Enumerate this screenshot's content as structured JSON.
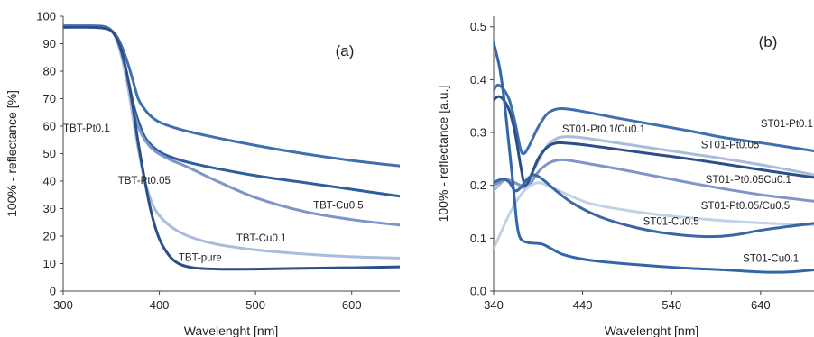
{
  "chart_data": [
    {
      "type": "line",
      "panel_label": "(a)",
      "xlabel": "Wavelenght [nm]",
      "ylabel": "100% - reflectance [%]",
      "xlim": [
        300,
        650
      ],
      "ylim": [
        0,
        100
      ],
      "xticks": [
        300,
        400,
        500,
        600
      ],
      "yticks": [
        0,
        10,
        20,
        30,
        40,
        50,
        60,
        70,
        80,
        90,
        100
      ],
      "grid": false,
      "legend": "none",
      "series": [
        {
          "name": "TBT-Pt0.1",
          "color": "#3f6fae",
          "label_at": [
            300,
            58
          ],
          "points": [
            [
              300,
              96.5
            ],
            [
              330,
              96.5
            ],
            [
              345,
              96
            ],
            [
              355,
              93
            ],
            [
              362,
              88
            ],
            [
              368,
              82
            ],
            [
              373,
              76
            ],
            [
              378,
              70
            ],
            [
              383,
              67
            ],
            [
              390,
              64
            ],
            [
              400,
              61.5
            ],
            [
              420,
              59
            ],
            [
              450,
              56.5
            ],
            [
              500,
              53
            ],
            [
              550,
              50
            ],
            [
              600,
              47.5
            ],
            [
              650,
              45.5
            ]
          ]
        },
        {
          "name": "TBT-Pt0.05",
          "color": "#2f5e9c",
          "label_at": [
            357,
            39
          ],
          "points": [
            [
              300,
              96
            ],
            [
              330,
              96
            ],
            [
              345,
              95.5
            ],
            [
              352,
              94
            ],
            [
              358,
              90
            ],
            [
              363,
              84
            ],
            [
              368,
              76
            ],
            [
              373,
              68
            ],
            [
              378,
              62
            ],
            [
              385,
              56
            ],
            [
              395,
              52
            ],
            [
              410,
              49
            ],
            [
              440,
              46
            ],
            [
              500,
              42
            ],
            [
              550,
              39.5
            ],
            [
              600,
              37
            ],
            [
              650,
              34.5
            ]
          ]
        },
        {
          "name": "TBT-Cu0.5",
          "color": "#7d95c7",
          "label_at": [
            560,
            30
          ],
          "points": [
            [
              300,
              96
            ],
            [
              330,
              96
            ],
            [
              345,
              95.5
            ],
            [
              352,
              94
            ],
            [
              358,
              89
            ],
            [
              363,
              82
            ],
            [
              368,
              74
            ],
            [
              373,
              66
            ],
            [
              378,
              60
            ],
            [
              385,
              55
            ],
            [
              395,
              51
            ],
            [
              410,
              48
            ],
            [
              430,
              45
            ],
            [
              460,
              40
            ],
            [
              500,
              34
            ],
            [
              550,
              29
            ],
            [
              600,
              26
            ],
            [
              650,
              24
            ]
          ]
        },
        {
          "name": "TBT-Cu0.1",
          "color": "#a9bcdb",
          "label_at": [
            480,
            18
          ],
          "points": [
            [
              300,
              96
            ],
            [
              330,
              96
            ],
            [
              345,
              95.5
            ],
            [
              352,
              94
            ],
            [
              358,
              89
            ],
            [
              363,
              82
            ],
            [
              368,
              73
            ],
            [
              373,
              62
            ],
            [
              378,
              52
            ],
            [
              385,
              40
            ],
            [
              395,
              30
            ],
            [
              410,
              24
            ],
            [
              430,
              20
            ],
            [
              460,
              17
            ],
            [
              500,
              15
            ],
            [
              550,
              13.5
            ],
            [
              600,
              12.5
            ],
            [
              650,
              12
            ]
          ]
        },
        {
          "name": "TBT-pure",
          "color": "#2c4f8a",
          "label_at": [
            420,
            11
          ],
          "points": [
            [
              300,
              96
            ],
            [
              330,
              96
            ],
            [
              345,
              95.5
            ],
            [
              352,
              94
            ],
            [
              358,
              90
            ],
            [
              363,
              84
            ],
            [
              368,
              76
            ],
            [
              373,
              66
            ],
            [
              378,
              54
            ],
            [
              385,
              40
            ],
            [
              392,
              28
            ],
            [
              400,
              19
            ],
            [
              410,
              13
            ],
            [
              420,
              10
            ],
            [
              435,
              8.5
            ],
            [
              460,
              8
            ],
            [
              500,
              8
            ],
            [
              550,
              8.3
            ],
            [
              600,
              8.5
            ],
            [
              650,
              8.8
            ]
          ]
        }
      ]
    },
    {
      "type": "line",
      "panel_label": "(b)",
      "xlabel": "Wavelenght [nm]",
      "ylabel": "100% - reflectance [a.u.]",
      "xlim": [
        340,
        700
      ],
      "ylim": [
        0,
        0.52
      ],
      "xticks": [
        340,
        440,
        540,
        640
      ],
      "yticks": [
        0,
        0.1,
        0.2,
        0.3,
        0.4,
        0.5
      ],
      "grid": false,
      "legend": "none",
      "series": [
        {
          "name": "ST01-Pt0.1",
          "color": "#3f6fae",
          "label_at": [
            640,
            0.31
          ],
          "points": [
            [
              340,
              0.38
            ],
            [
              345,
              0.39
            ],
            [
              352,
              0.38
            ],
            [
              358,
              0.36
            ],
            [
              364,
              0.32
            ],
            [
              370,
              0.27
            ],
            [
              374,
              0.26
            ],
            [
              380,
              0.275
            ],
            [
              390,
              0.31
            ],
            [
              400,
              0.335
            ],
            [
              410,
              0.344
            ],
            [
              420,
              0.345
            ],
            [
              440,
              0.34
            ],
            [
              480,
              0.327
            ],
            [
              520,
              0.315
            ],
            [
              560,
              0.303
            ],
            [
              600,
              0.29
            ],
            [
              650,
              0.278
            ],
            [
              700,
              0.265
            ]
          ]
        },
        {
          "name": "ST01-Pt0.1/Cu0.1",
          "color": "#a9bcdb",
          "label_at": [
            417,
            0.3
          ],
          "points": [
            [
              340,
              0.19
            ],
            [
              346,
              0.2
            ],
            [
              352,
              0.21
            ],
            [
              358,
              0.208
            ],
            [
              364,
              0.205
            ],
            [
              372,
              0.2
            ],
            [
              380,
              0.215
            ],
            [
              390,
              0.245
            ],
            [
              400,
              0.275
            ],
            [
              410,
              0.288
            ],
            [
              420,
              0.292
            ],
            [
              440,
              0.29
            ],
            [
              480,
              0.28
            ],
            [
              520,
              0.27
            ],
            [
              560,
              0.26
            ],
            [
              600,
              0.25
            ],
            [
              650,
              0.236
            ],
            [
              700,
              0.22
            ]
          ]
        },
        {
          "name": "ST01-Pt0.05",
          "color": "#2c4f8a",
          "label_at": [
            573,
            0.27
          ],
          "points": [
            [
              340,
              0.362
            ],
            [
              346,
              0.368
            ],
            [
              352,
              0.36
            ],
            [
              358,
              0.34
            ],
            [
              364,
              0.3
            ],
            [
              370,
              0.24
            ],
            [
              375,
              0.2
            ],
            [
              380,
              0.21
            ],
            [
              390,
              0.25
            ],
            [
              400,
              0.272
            ],
            [
              410,
              0.28
            ],
            [
              420,
              0.28
            ],
            [
              440,
              0.277
            ],
            [
              480,
              0.268
            ],
            [
              520,
              0.259
            ],
            [
              560,
              0.25
            ],
            [
              600,
              0.24
            ],
            [
              650,
              0.227
            ],
            [
              700,
              0.215
            ]
          ]
        },
        {
          "name": "ST01-Pt0.05Cu0.1",
          "color": "#7d95c7",
          "label_at": [
            578,
            0.205
          ],
          "points": [
            [
              340,
              0.2
            ],
            [
              346,
              0.205
            ],
            [
              352,
              0.21
            ],
            [
              358,
              0.21
            ],
            [
              364,
              0.205
            ],
            [
              370,
              0.2
            ],
            [
              376,
              0.195
            ],
            [
              382,
              0.205
            ],
            [
              390,
              0.225
            ],
            [
              400,
              0.24
            ],
            [
              410,
              0.247
            ],
            [
              420,
              0.248
            ],
            [
              440,
              0.243
            ],
            [
              480,
              0.231
            ],
            [
              520,
              0.218
            ],
            [
              560,
              0.205
            ],
            [
              600,
              0.193
            ],
            [
              650,
              0.18
            ],
            [
              700,
              0.17
            ]
          ]
        },
        {
          "name": "ST01-Pt0.05/Cu0.5",
          "color": "#c3d1e8",
          "label_at": [
            573,
            0.155
          ],
          "points": [
            [
              340,
              0.08
            ],
            [
              348,
              0.11
            ],
            [
              356,
              0.14
            ],
            [
              364,
              0.165
            ],
            [
              372,
              0.185
            ],
            [
              380,
              0.198
            ],
            [
              390,
              0.205
            ],
            [
              400,
              0.2
            ],
            [
              420,
              0.185
            ],
            [
              450,
              0.165
            ],
            [
              500,
              0.15
            ],
            [
              550,
              0.14
            ],
            [
              600,
              0.133
            ],
            [
              650,
              0.128
            ],
            [
              700,
              0.125
            ]
          ]
        },
        {
          "name": "ST01-Cu0.5",
          "color": "#3a66a5",
          "label_at": [
            508,
            0.125
          ],
          "points": [
            [
              340,
              0.205
            ],
            [
              346,
              0.21
            ],
            [
              352,
              0.212
            ],
            [
              358,
              0.205
            ],
            [
              364,
              0.19
            ],
            [
              370,
              0.195
            ],
            [
              378,
              0.212
            ],
            [
              386,
              0.22
            ],
            [
              396,
              0.21
            ],
            [
              410,
              0.19
            ],
            [
              430,
              0.165
            ],
            [
              460,
              0.14
            ],
            [
              500,
              0.12
            ],
            [
              540,
              0.108
            ],
            [
              580,
              0.103
            ],
            [
              610,
              0.106
            ],
            [
              640,
              0.115
            ],
            [
              670,
              0.122
            ],
            [
              700,
              0.128
            ]
          ]
        },
        {
          "name": "ST01-Cu0.1",
          "color": "#3366a8",
          "label_at": [
            620,
            0.055
          ],
          "points": [
            [
              340,
              0.47
            ],
            [
              343,
              0.45
            ],
            [
              347,
              0.42
            ],
            [
              352,
              0.36
            ],
            [
              357,
              0.28
            ],
            [
              362,
              0.2
            ],
            [
              366,
              0.13
            ],
            [
              370,
              0.1
            ],
            [
              378,
              0.092
            ],
            [
              390,
              0.09
            ],
            [
              396,
              0.088
            ],
            [
              405,
              0.08
            ],
            [
              420,
              0.068
            ],
            [
              450,
              0.058
            ],
            [
              500,
              0.05
            ],
            [
              550,
              0.044
            ],
            [
              600,
              0.04
            ],
            [
              640,
              0.036
            ],
            [
              670,
              0.036
            ],
            [
              700,
              0.04
            ]
          ]
        }
      ]
    }
  ]
}
